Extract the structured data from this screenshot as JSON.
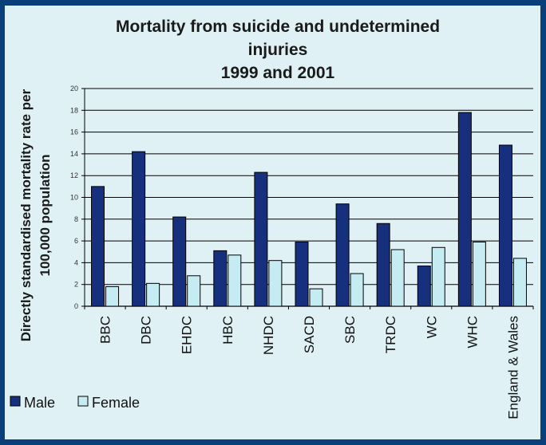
{
  "chart_data": {
    "type": "bar",
    "title_lines": [
      "Mortality from suicide and undetermined",
      "injuries",
      "1999 and 2001"
    ],
    "ylabel_lines": [
      "Directly standardised mortality rate per",
      "100,000 population"
    ],
    "xlabel": "",
    "categories": [
      "BBC",
      "DBC",
      "EHDC",
      "HBC",
      "NHDC",
      "SACD",
      "SBC",
      "TRDC",
      "WC",
      "WHC",
      "England & Wales"
    ],
    "series": [
      {
        "name": "Male",
        "values": [
          11.0,
          14.2,
          8.2,
          5.1,
          12.3,
          5.9,
          9.4,
          7.6,
          3.7,
          17.8,
          14.8
        ]
      },
      {
        "name": "Female",
        "values": [
          1.8,
          2.1,
          2.8,
          4.7,
          4.2,
          1.6,
          3.0,
          5.2,
          5.4,
          5.9,
          4.4
        ]
      }
    ],
    "ylim": [
      0,
      20
    ],
    "yticks": [
      "0",
      "2",
      "4",
      "6",
      "8",
      "10",
      "12",
      "14",
      "16",
      "18",
      "20"
    ],
    "grid": true,
    "legend_position": "bottom-left",
    "colors": {
      "Male": "#16307e",
      "Female": "#c5ecf2",
      "background": "#dff1f5",
      "border": "#0a3f7a"
    }
  }
}
